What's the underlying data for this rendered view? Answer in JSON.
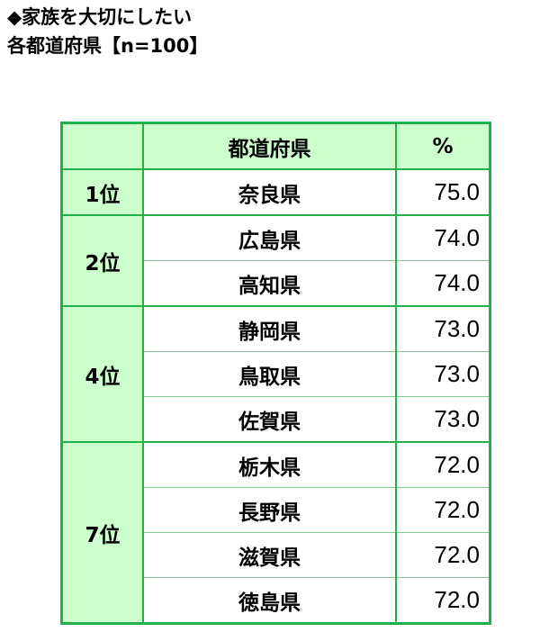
{
  "title": "◆家族を大切にしたい",
  "subtitle": "各都道府県【n=100】",
  "chart_data": {
    "type": "table",
    "columns": [
      "",
      "都道府県",
      "%"
    ],
    "rows": [
      {
        "rank": "1位",
        "prefecture": "奈良県",
        "value": "75.0"
      },
      {
        "rank": "2位",
        "prefecture": "広島県",
        "value": "74.0"
      },
      {
        "rank": "2位",
        "prefecture": "高知県",
        "value": "74.0"
      },
      {
        "rank": "4位",
        "prefecture": "静岡県",
        "value": "73.0"
      },
      {
        "rank": "4位",
        "prefecture": "鳥取県",
        "value": "73.0"
      },
      {
        "rank": "4位",
        "prefecture": "佐賀県",
        "value": "73.0"
      },
      {
        "rank": "7位",
        "prefecture": "栃木県",
        "value": "72.0"
      },
      {
        "rank": "7位",
        "prefecture": "長野県",
        "value": "72.0"
      },
      {
        "rank": "7位",
        "prefecture": "滋賀県",
        "value": "72.0"
      },
      {
        "rank": "7位",
        "prefecture": "徳島県",
        "value": "72.0"
      }
    ]
  },
  "colors": {
    "border": "#22b04b",
    "header_fill": "#ccffcc"
  }
}
